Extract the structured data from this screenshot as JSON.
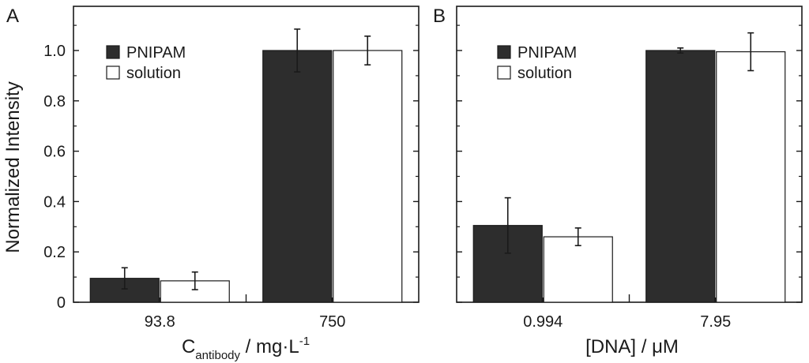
{
  "figure": {
    "ylabel": "Normalized Intensity"
  },
  "colors": {
    "dark_bar": "#2d2d2d",
    "light_bar": "#ffffff",
    "axis": "#1a1a1a"
  },
  "chart_data": [
    {
      "type": "bar",
      "panel_label": "A",
      "categories": [
        "93.8",
        "750"
      ],
      "xlabel_main": "C",
      "xlabel_sub": "antibody",
      "xlabel_unit": " / mg·L",
      "xlabel_sup": "-1",
      "ylabel": "Normalized Intensity",
      "ylim": [
        0,
        1.15
      ],
      "yticks": [
        "0",
        "0.2",
        "0.4",
        "0.6",
        "0.8",
        "1.0"
      ],
      "ytick_values": [
        0,
        0.2,
        0.4,
        0.6,
        0.8,
        1.0
      ],
      "legend_position": "top-left",
      "series": [
        {
          "name": "PNIPAM",
          "values": [
            0.095,
            1.0
          ],
          "errors": [
            0.042,
            0.085
          ],
          "color_key": "dark_bar"
        },
        {
          "name": "solution",
          "values": [
            0.085,
            1.0
          ],
          "errors": [
            0.035,
            0.057
          ],
          "color_key": "light_bar"
        }
      ]
    },
    {
      "type": "bar",
      "panel_label": "B",
      "categories": [
        "0.994",
        "7.95"
      ],
      "xlabel_main": "[DNA] / μM",
      "xlabel_sub": "",
      "xlabel_unit": "",
      "xlabel_sup": "",
      "ylabel": "",
      "ylim": [
        0,
        1.15
      ],
      "yticks": [],
      "ytick_values": [
        0,
        0.2,
        0.4,
        0.6,
        0.8,
        1.0
      ],
      "legend_position": "top-left",
      "series": [
        {
          "name": "PNIPAM",
          "values": [
            0.305,
            1.0
          ],
          "errors": [
            0.11,
            0.01
          ],
          "color_key": "dark_bar"
        },
        {
          "name": "solution",
          "values": [
            0.26,
            0.995
          ],
          "errors": [
            0.035,
            0.075
          ],
          "color_key": "light_bar"
        }
      ]
    }
  ]
}
